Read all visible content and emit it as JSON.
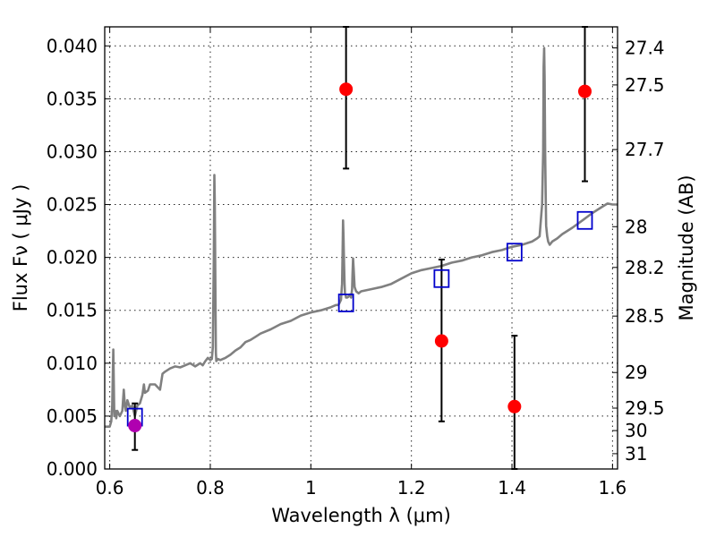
{
  "chart_data": {
    "type": "line",
    "xlabel": "Wavelength  λ (μm)",
    "ylabel": "Flux  Fν  ( μJy )",
    "ylabel_right": "Magnitude (AB)",
    "xlim": [
      0.59,
      1.61
    ],
    "ylim": [
      0.0,
      0.0418
    ],
    "x_ticks": [
      0.6,
      0.8,
      1.0,
      1.2,
      1.4,
      1.6
    ],
    "x_tick_labels": [
      "0.6",
      "0.8",
      "1",
      "1.2",
      "1.4",
      "1.6"
    ],
    "y_ticks": [
      0.0,
      0.005,
      0.01,
      0.015,
      0.02,
      0.025,
      0.03,
      0.035,
      0.04
    ],
    "y_tick_labels": [
      "0.000",
      "0.005",
      "0.010",
      "0.015",
      "0.020",
      "0.025",
      "0.030",
      "0.035",
      "0.040"
    ],
    "right_ticks": [
      27.4,
      27.5,
      27.7,
      28,
      28.2,
      28.5,
      29,
      29.5,
      30,
      31
    ],
    "right_tick_labels": [
      "27.4",
      "27.5",
      "27.7",
      "28",
      "28.2",
      "28.5",
      "29",
      "29.5",
      "30",
      "31"
    ],
    "grid": true,
    "colors": {
      "spectrum": "#808080",
      "observed": "#ff0000",
      "model": "#0000cc",
      "highlight": "#b000b0",
      "errorbar": "#000000"
    },
    "series": [
      {
        "kind": "spectrum",
        "x": [
          0.59,
          0.595,
          0.6,
          0.603,
          0.605,
          0.607,
          0.609,
          0.611,
          0.613,
          0.615,
          0.62,
          0.625,
          0.628,
          0.63,
          0.632,
          0.635,
          0.64,
          0.645,
          0.65,
          0.655,
          0.66,
          0.665,
          0.668,
          0.67,
          0.673,
          0.676,
          0.68,
          0.69,
          0.7,
          0.705,
          0.71,
          0.72,
          0.73,
          0.74,
          0.75,
          0.76,
          0.77,
          0.78,
          0.785,
          0.79,
          0.795,
          0.8,
          0.803,
          0.805,
          0.807,
          0.808,
          0.809,
          0.81,
          0.811,
          0.812,
          0.815,
          0.82,
          0.825,
          0.83,
          0.84,
          0.85,
          0.86,
          0.87,
          0.88,
          0.89,
          0.9,
          0.92,
          0.94,
          0.96,
          0.98,
          1.0,
          1.02,
          1.04,
          1.05,
          1.055,
          1.06,
          1.062,
          1.063,
          1.064,
          1.065,
          1.066,
          1.067,
          1.068,
          1.069,
          1.07,
          1.072,
          1.075,
          1.078,
          1.08,
          1.082,
          1.083,
          1.084,
          1.085,
          1.087,
          1.09,
          1.095,
          1.1,
          1.12,
          1.14,
          1.16,
          1.18,
          1.2,
          1.22,
          1.24,
          1.26,
          1.28,
          1.3,
          1.32,
          1.34,
          1.36,
          1.38,
          1.4,
          1.42,
          1.44,
          1.45,
          1.455,
          1.46,
          1.462,
          1.463,
          1.464,
          1.465,
          1.466,
          1.467,
          1.468,
          1.47,
          1.472,
          1.475,
          1.48,
          1.49,
          1.5,
          1.52,
          1.54,
          1.56,
          1.58,
          1.59,
          1.6,
          1.61
        ],
        "y": [
          0.004,
          0.004,
          0.004,
          0.0045,
          0.006,
          0.0113,
          0.005,
          0.0055,
          0.0048,
          0.0055,
          0.005,
          0.0055,
          0.0075,
          0.006,
          0.0055,
          0.0065,
          0.0058,
          0.006,
          0.005,
          0.006,
          0.0062,
          0.007,
          0.008,
          0.0072,
          0.0073,
          0.0074,
          0.008,
          0.008,
          0.0075,
          0.009,
          0.0092,
          0.0095,
          0.0097,
          0.0096,
          0.0098,
          0.01,
          0.0097,
          0.01,
          0.0098,
          0.0102,
          0.0105,
          0.0103,
          0.0104,
          0.0115,
          0.02,
          0.0278,
          0.025,
          0.018,
          0.011,
          0.0102,
          0.0104,
          0.0103,
          0.0104,
          0.0105,
          0.0108,
          0.0112,
          0.0115,
          0.012,
          0.0122,
          0.0125,
          0.0128,
          0.0132,
          0.0137,
          0.014,
          0.0145,
          0.0148,
          0.015,
          0.0153,
          0.0155,
          0.0155,
          0.016,
          0.0175,
          0.02,
          0.0235,
          0.022,
          0.0195,
          0.0175,
          0.0165,
          0.0165,
          0.0162,
          0.0162,
          0.0163,
          0.0165,
          0.0162,
          0.017,
          0.0185,
          0.0199,
          0.019,
          0.0172,
          0.0168,
          0.0166,
          0.0168,
          0.017,
          0.0172,
          0.0175,
          0.018,
          0.0185,
          0.0188,
          0.019,
          0.0192,
          0.0195,
          0.0197,
          0.02,
          0.0202,
          0.0205,
          0.0207,
          0.021,
          0.0212,
          0.0215,
          0.0218,
          0.022,
          0.025,
          0.03,
          0.038,
          0.0398,
          0.037,
          0.03,
          0.026,
          0.023,
          0.022,
          0.0215,
          0.0212,
          0.0215,
          0.0218,
          0.0222,
          0.0228,
          0.0235,
          0.0242,
          0.0248,
          0.0251,
          0.025,
          0.025
        ]
      },
      {
        "kind": "observed",
        "x": [
          1.07,
          1.26,
          1.405,
          1.545
        ],
        "y": [
          0.0359,
          0.0121,
          0.0059,
          0.0357
        ],
        "yerr_low": [
          0.0284,
          0.0045,
          0.0,
          0.0272
        ],
        "yerr_high": [
          0.0418,
          0.0198,
          0.0126,
          0.0418
        ]
      },
      {
        "kind": "model",
        "x": [
          0.65,
          1.07,
          1.26,
          1.405,
          1.545
        ],
        "y": [
          0.0049,
          0.0157,
          0.018,
          0.0205,
          0.0235
        ]
      },
      {
        "kind": "highlight",
        "x": [
          0.65
        ],
        "y": [
          0.0041
        ],
        "yerr_low": [
          0.0018
        ],
        "yerr_high": [
          0.0062
        ]
      }
    ]
  }
}
